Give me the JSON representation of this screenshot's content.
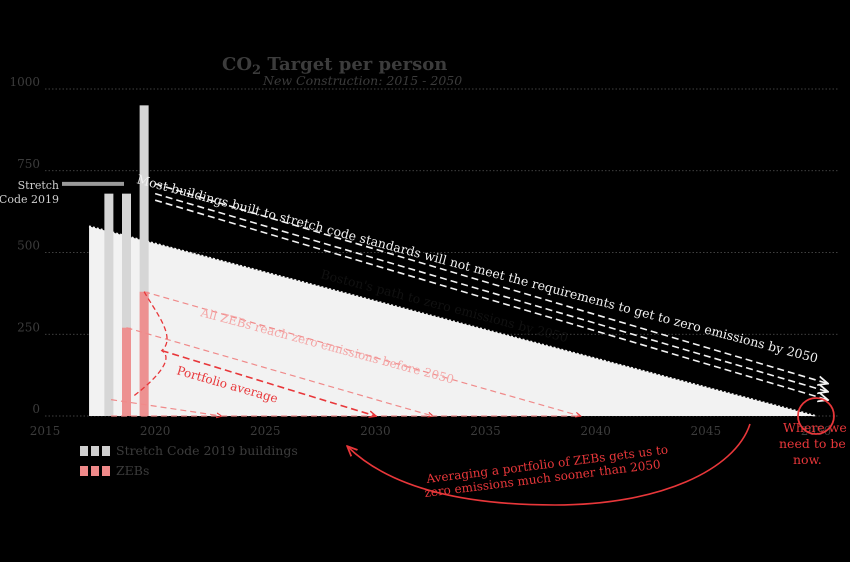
{
  "chart_data": {
    "type": "area",
    "title_main": "CO",
    "title_sub_script": "2",
    "title_rest": " Target per person",
    "subtitle": "New Construction: 2015 - 2050",
    "xlim": [
      2015,
      2051
    ],
    "ylim": [
      0,
      1000
    ],
    "x_ticks": [
      2015,
      2020,
      2025,
      2030,
      2035,
      2040,
      2045,
      2050
    ],
    "y_ticks": [
      0,
      250,
      500,
      750,
      1000
    ],
    "grid": true,
    "boston_path": {
      "x": [
        2017,
        2050
      ],
      "y": [
        580,
        0
      ]
    },
    "stretch_buildings": {
      "x": [
        2017.9,
        2018.7,
        2019.5
      ],
      "y": [
        680,
        680,
        950
      ]
    },
    "zeb_buildings": {
      "x": [
        2018.7,
        2019.5
      ],
      "y": [
        270,
        380
      ]
    },
    "zeb_lines": [
      {
        "from": [
          2019.5,
          380
        ],
        "to": [
          2039.3,
          0
        ]
      },
      {
        "from": [
          2018.7,
          270
        ],
        "to": [
          2032.6,
          0
        ]
      },
      {
        "from": [
          2018,
          50
        ],
        "to": [
          2023,
          0
        ]
      }
    ],
    "portfolio_average": {
      "from": [
        2020.3,
        200
      ],
      "to": [
        2030,
        0
      ]
    },
    "stretch_code_2019_level": 710,
    "stretch_lines": [
      {
        "from": [
          2020,
          710
        ],
        "to": [
          2050.5,
          100
        ]
      },
      {
        "from": [
          2020,
          680
        ],
        "to": [
          2050.5,
          75
        ]
      },
      {
        "from": [
          2020,
          660
        ],
        "to": [
          2050.5,
          50
        ]
      }
    ],
    "annotations": {
      "stretch_label_1": "Stretch",
      "stretch_label_2": "Code 2019",
      "most_buildings": "Most buildings built to stretch code standards will not meet the requirements to get to zero emissions by 2050",
      "boston_path": "Boston's path to zero emissions by 2050",
      "all_zebs": "All ZEBs reach zero emissions before 2050",
      "portfolio": "Portfolio average",
      "where_1": "Where we",
      "where_2": "need to be",
      "where_3": "now.",
      "averaging_1": "Averaging a portfolio of ZEBs gets us to",
      "averaging_2": "zero emissions much sooner than 2050"
    },
    "legend": [
      {
        "label": "Stretch Code 2019 buildings",
        "color": "#cfcfcf"
      },
      {
        "label": "ZEBs",
        "color": "#f08a8a"
      }
    ],
    "legend_position": "bottom-left"
  },
  "colors": {
    "background": "#000000",
    "grid": "#555555",
    "axis_text": "#3c3c3c",
    "area": "#f2f2f2",
    "stretch": "#d6d6d6",
    "zeb": "#f08a8a",
    "red": "#e8373a",
    "white": "#f2f2f2"
  }
}
